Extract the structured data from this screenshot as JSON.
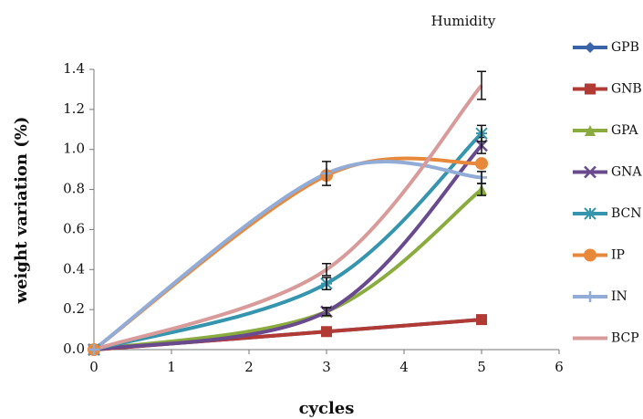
{
  "chart_data": {
    "type": "line",
    "title": "Humidity",
    "x_label": "cycles",
    "y_label": "weight variation (%)",
    "x": [
      0,
      3,
      5
    ],
    "series": [
      {
        "name": "GPB",
        "color": "#3a64a8",
        "marker": "diamond",
        "values": [
          0,
          0.09,
          0.15
        ]
      },
      {
        "name": "GNB",
        "color": "#b23a35",
        "marker": "square",
        "values": [
          0,
          0.09,
          0.15
        ]
      },
      {
        "name": "GPA",
        "color": "#8aac3f",
        "marker": "triangle",
        "values": [
          0,
          0.19,
          0.8
        ],
        "errors": [
          0,
          0.02,
          0.03
        ]
      },
      {
        "name": "GNA",
        "color": "#6a4a8f",
        "marker": "x",
        "values": [
          0,
          0.19,
          1.02
        ],
        "errors": [
          0,
          0.02,
          0.04
        ]
      },
      {
        "name": "BCN",
        "color": "#3595ae",
        "marker": "star",
        "values": [
          0,
          0.33,
          1.08
        ],
        "errors": [
          0,
          0.03,
          0.04
        ]
      },
      {
        "name": "IP",
        "color": "#e8883a",
        "marker": "circle",
        "values": [
          0,
          0.87,
          0.93
        ]
      },
      {
        "name": "IN",
        "color": "#92acd8",
        "marker": "plus",
        "values": [
          0,
          0.88,
          0.86
        ],
        "errors": [
          0,
          0.06,
          0.03
        ]
      },
      {
        "name": "BCP",
        "color": "#d99a9a",
        "marker": "none",
        "values": [
          0,
          0.4,
          1.32
        ],
        "errors": [
          0,
          0.03,
          0.07
        ]
      }
    ],
    "xlim": [
      0,
      6
    ],
    "xticks": [
      0,
      1,
      2,
      3,
      4,
      5,
      6
    ],
    "ylim": [
      0,
      1.4
    ],
    "yticks": [
      {
        "value": 0,
        "label": "0.0"
      },
      {
        "value": 0.2,
        "label": "0.2"
      },
      {
        "value": 0.4,
        "label": "0.4"
      },
      {
        "value": 0.6,
        "label": "0.6"
      },
      {
        "value": 0.8,
        "label": "0.8"
      },
      {
        "value": 1.0,
        "label": "1.0"
      },
      {
        "value": 1.2,
        "label": "1.2"
      },
      {
        "value": 1.4,
        "label": "1.4"
      }
    ],
    "legend": "right"
  }
}
